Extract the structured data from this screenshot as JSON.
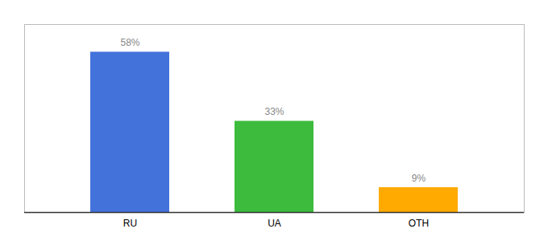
{
  "chart_data": {
    "type": "bar",
    "categories": [
      "RU",
      "UA",
      "OTH"
    ],
    "values": [
      58,
      33,
      9
    ],
    "colors": [
      "#4472db",
      "#3dbb3d",
      "#ffaa00"
    ],
    "ylim": [
      0,
      68
    ],
    "yticks": [],
    "data_labels": true,
    "value_labels": [
      "58%",
      "33%",
      "9%"
    ],
    "tick_labels": "x",
    "grid": false
  }
}
